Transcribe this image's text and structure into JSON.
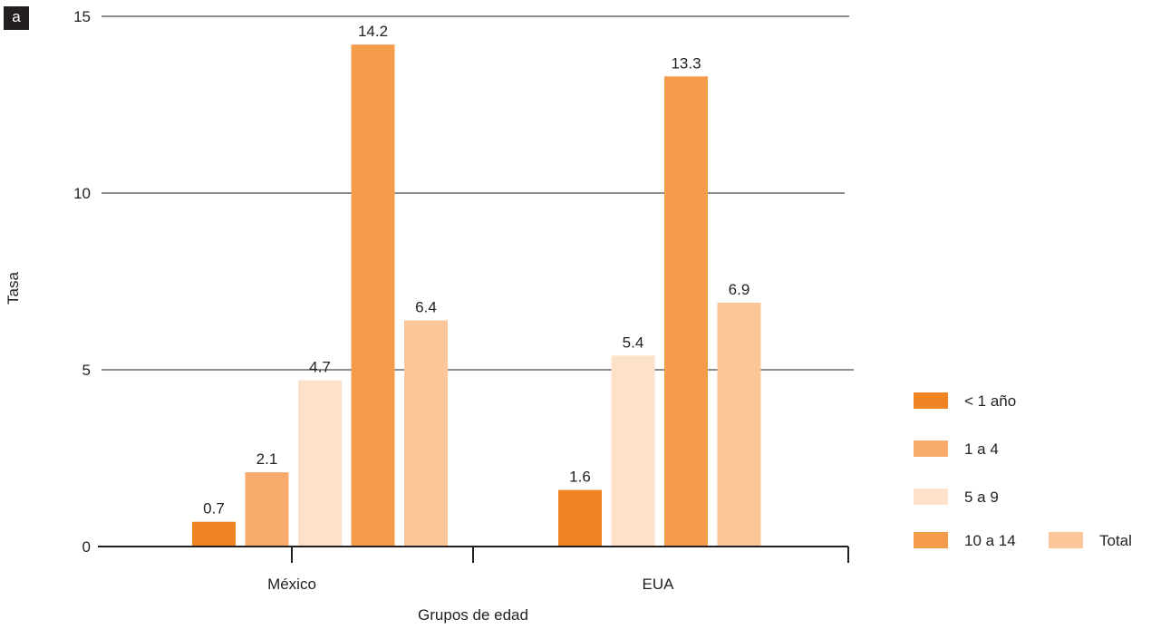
{
  "panel_label": "a",
  "chart_data": {
    "type": "bar",
    "title": "",
    "xlabel": "Grupos de edad",
    "ylabel": "Tasa",
    "ylim": [
      0,
      15
    ],
    "yticks": [
      0,
      5,
      10,
      15
    ],
    "grid": true,
    "legend_position": "bottom-right",
    "categories": [
      "México",
      "EUA"
    ],
    "series": [
      {
        "name": "< 1 año",
        "color": "#f08422",
        "values": [
          0.7,
          1.6
        ]
      },
      {
        "name": "1 a 4",
        "color": "#f7ab6d",
        "values": [
          2.1,
          null
        ]
      },
      {
        "name": "5 a 9",
        "color": "#fde1c8",
        "values": [
          4.7,
          5.4
        ]
      },
      {
        "name": "10 a 14",
        "color": "#f59b4c",
        "values": [
          14.2,
          13.3
        ]
      },
      {
        "name": "Total",
        "color": "#fbc799",
        "values": [
          6.4,
          6.9
        ]
      }
    ]
  }
}
